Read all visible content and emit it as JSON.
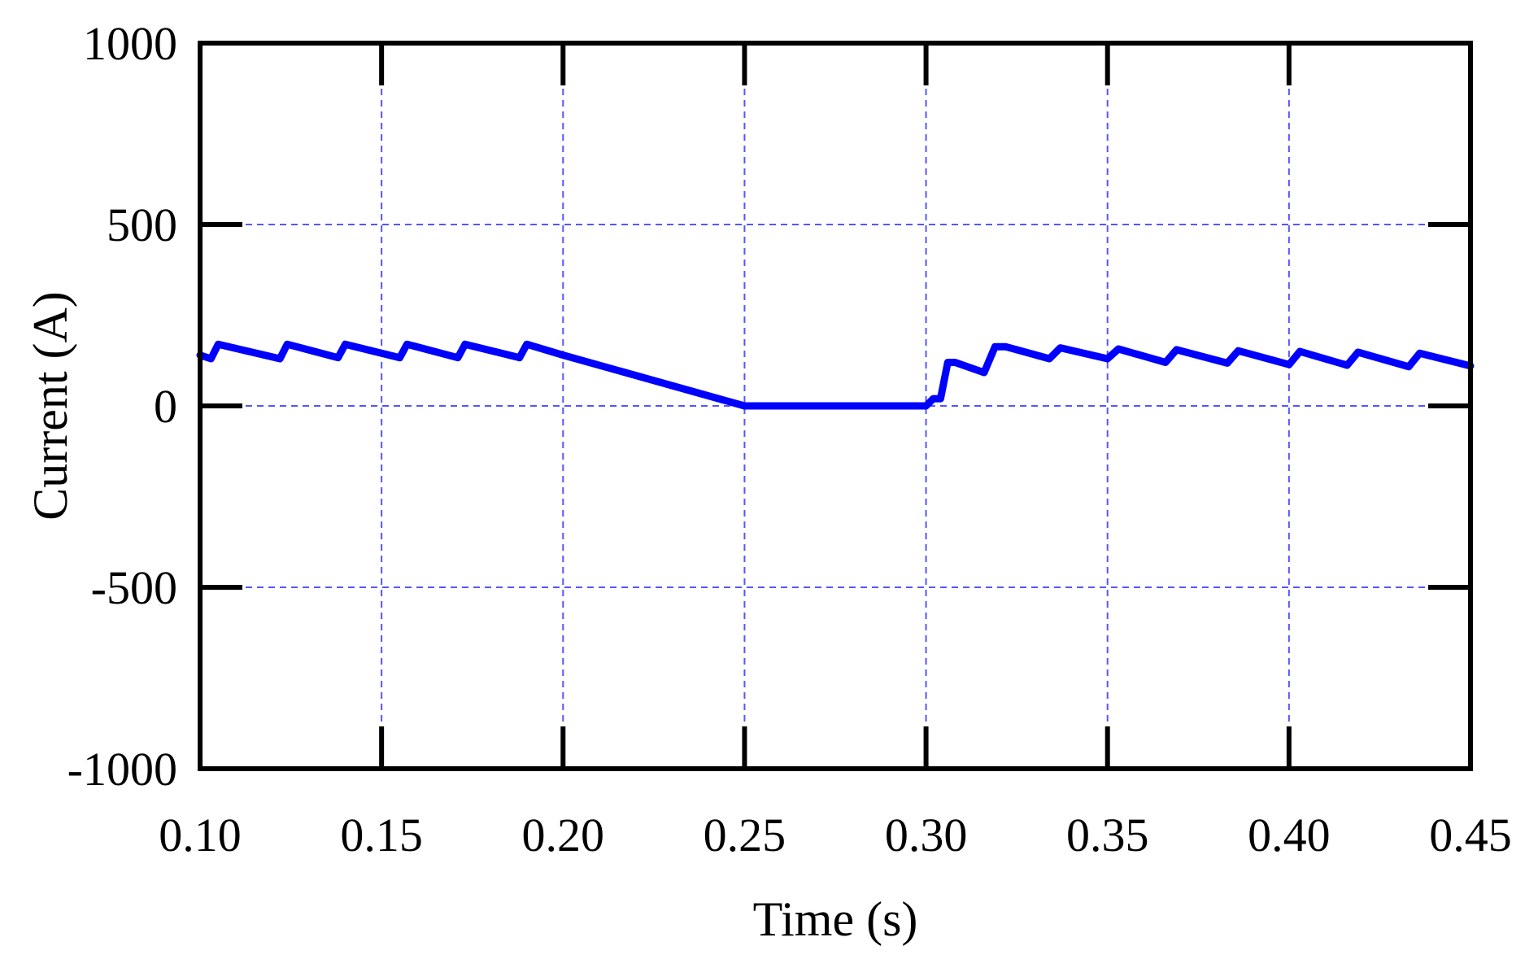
{
  "chart_data": {
    "type": "line",
    "title": "",
    "xlabel": "Time (s)",
    "ylabel": "Current (A)",
    "xlim": [
      0.1,
      0.45
    ],
    "ylim": [
      -1000,
      1000
    ],
    "x_ticks": [
      "0.10",
      "0.15",
      "0.20",
      "0.25",
      "0.30",
      "0.35",
      "0.40",
      "0.45"
    ],
    "y_ticks": [
      "1000",
      "500",
      "0",
      "-500",
      "-1000"
    ],
    "grid": true,
    "legend": "none",
    "colors": {
      "series": "#0000ff",
      "grid": "#5555ff",
      "axes": "#000000"
    },
    "series": [
      {
        "x": [
          0.1,
          0.103,
          0.105,
          0.122,
          0.124,
          0.138,
          0.14,
          0.155,
          0.157,
          0.171,
          0.173,
          0.188,
          0.19,
          0.2,
          0.25,
          0.3,
          0.302,
          0.304,
          0.306,
          0.308,
          0.316,
          0.319,
          0.322,
          0.334,
          0.337,
          0.35,
          0.353,
          0.366,
          0.369,
          0.383,
          0.386,
          0.4,
          0.403,
          0.416,
          0.419,
          0.433,
          0.436,
          0.45
        ],
        "y": [
          140,
          130,
          170,
          130,
          170,
          133,
          170,
          133,
          170,
          133,
          170,
          133,
          170,
          140,
          0,
          0,
          20,
          20,
          120,
          120,
          92,
          163,
          163,
          130,
          160,
          130,
          157,
          120,
          155,
          118,
          152,
          114,
          150,
          112,
          148,
          108,
          145,
          110
        ]
      }
    ]
  }
}
